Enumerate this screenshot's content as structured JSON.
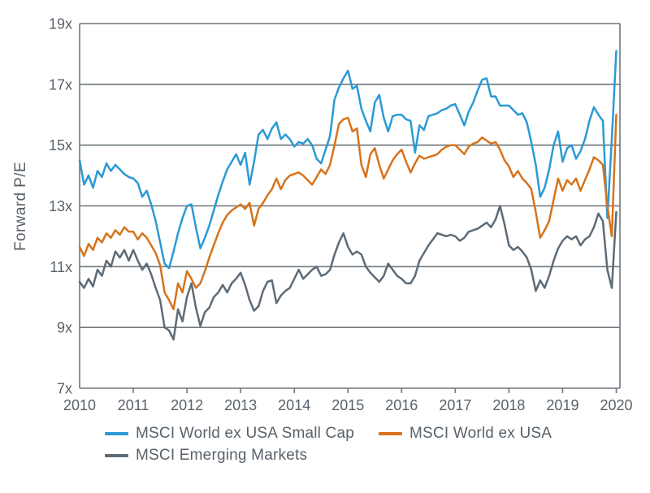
{
  "page": {
    "background": "#ffffff"
  },
  "chart_data": {
    "type": "line",
    "title": "",
    "ylabel": "Forward P/E",
    "xlabel": "",
    "ylim": [
      7,
      19
    ],
    "y_ticks": [
      "19x",
      "17x",
      "15x",
      "13x",
      "11x",
      "9x",
      "7x"
    ],
    "y_tick_values": [
      19,
      17,
      15,
      13,
      11,
      9,
      7
    ],
    "x_ticks": [
      "2010",
      "2011",
      "2012",
      "2013",
      "2014",
      "2015",
      "2016",
      "2017",
      "2018",
      "2019",
      "2020"
    ],
    "x_tick_values": [
      2010,
      2011,
      2012,
      2013,
      2014,
      2015,
      2016,
      2017,
      2018,
      2019,
      2020
    ],
    "x_start_year": 2010,
    "points_per_year": 12,
    "grid": "horizontal",
    "legend_position": "bottom-left",
    "axis_color": "#6E777E",
    "text_color": "#58616A",
    "series": [
      {
        "name": "MSCI World ex USA Small Cap",
        "color": "#2A9AD6",
        "values": [
          14.5,
          13.7,
          14.0,
          13.6,
          14.15,
          13.95,
          14.4,
          14.15,
          14.35,
          14.2,
          14.05,
          13.95,
          13.9,
          13.75,
          13.3,
          13.5,
          13.05,
          12.5,
          11.8,
          11.1,
          10.95,
          11.5,
          12.1,
          12.6,
          13.0,
          13.05,
          12.3,
          11.6,
          11.95,
          12.35,
          12.85,
          13.35,
          13.8,
          14.2,
          14.45,
          14.7,
          14.35,
          14.75,
          13.7,
          14.45,
          15.35,
          15.5,
          15.2,
          15.55,
          15.75,
          15.2,
          15.35,
          15.2,
          14.95,
          15.1,
          15.05,
          15.2,
          15.0,
          14.55,
          14.4,
          14.85,
          15.3,
          16.5,
          16.9,
          17.2,
          17.45,
          16.85,
          16.95,
          16.2,
          15.8,
          15.45,
          16.4,
          16.65,
          15.9,
          15.45,
          15.95,
          16.0,
          16.0,
          15.85,
          15.8,
          14.75,
          15.65,
          15.5,
          15.95,
          16.0,
          16.05,
          16.15,
          16.2,
          16.3,
          16.35,
          16.0,
          15.65,
          16.1,
          16.4,
          16.8,
          17.15,
          17.2,
          16.6,
          16.6,
          16.3,
          16.3,
          16.3,
          16.15,
          16.0,
          16.05,
          15.75,
          15.1,
          14.35,
          13.3,
          13.6,
          14.2,
          15.0,
          15.45,
          14.45,
          14.9,
          15.0,
          14.55,
          14.8,
          15.2,
          15.8,
          16.25,
          16.0,
          15.8,
          12.6,
          15.2,
          18.1
        ]
      },
      {
        "name": "MSCI World ex USA",
        "color": "#D7731B",
        "values": [
          11.65,
          11.35,
          11.75,
          11.55,
          11.95,
          11.8,
          12.1,
          11.95,
          12.2,
          12.05,
          12.3,
          12.15,
          12.15,
          11.9,
          12.1,
          11.95,
          11.7,
          11.45,
          11.05,
          10.15,
          9.9,
          9.6,
          10.45,
          10.15,
          10.85,
          10.6,
          10.3,
          10.45,
          10.85,
          11.3,
          11.7,
          12.1,
          12.45,
          12.7,
          12.85,
          12.95,
          13.05,
          12.9,
          13.1,
          12.35,
          12.9,
          13.1,
          13.35,
          13.55,
          13.9,
          13.55,
          13.85,
          14.0,
          14.05,
          14.1,
          14.0,
          13.85,
          13.7,
          13.95,
          14.2,
          14.05,
          14.35,
          15.0,
          15.7,
          15.85,
          15.9,
          15.45,
          15.55,
          14.35,
          13.95,
          14.7,
          14.9,
          14.35,
          13.9,
          14.2,
          14.5,
          14.7,
          14.85,
          14.45,
          14.1,
          14.4,
          14.65,
          14.55,
          14.6,
          14.65,
          14.7,
          14.85,
          14.95,
          15.0,
          15.0,
          14.85,
          14.7,
          14.95,
          15.05,
          15.1,
          15.25,
          15.15,
          15.05,
          15.1,
          14.85,
          14.5,
          14.3,
          13.95,
          14.15,
          13.9,
          13.75,
          13.55,
          12.8,
          11.95,
          12.2,
          12.5,
          13.2,
          13.9,
          13.5,
          13.85,
          13.7,
          13.9,
          13.5,
          13.85,
          14.2,
          14.6,
          14.5,
          14.35,
          13.0,
          12.0,
          16.0
        ]
      },
      {
        "name": "MSCI Emerging Markets",
        "color": "#5D6B77",
        "values": [
          10.5,
          10.3,
          10.6,
          10.35,
          10.9,
          10.7,
          11.2,
          11.0,
          11.5,
          11.3,
          11.55,
          11.2,
          11.55,
          11.2,
          10.9,
          11.1,
          10.75,
          10.3,
          9.9,
          9.0,
          8.9,
          8.6,
          9.6,
          9.2,
          10.0,
          10.45,
          9.65,
          9.05,
          9.5,
          9.65,
          10.0,
          10.15,
          10.4,
          10.15,
          10.45,
          10.6,
          10.8,
          10.4,
          9.9,
          9.55,
          9.7,
          10.2,
          10.5,
          10.55,
          9.8,
          10.05,
          10.2,
          10.3,
          10.6,
          10.9,
          10.6,
          10.75,
          10.9,
          11.0,
          10.7,
          10.75,
          10.9,
          11.4,
          11.8,
          12.1,
          11.65,
          11.4,
          11.5,
          11.4,
          11.0,
          10.8,
          10.65,
          10.5,
          10.7,
          11.1,
          10.9,
          10.7,
          10.6,
          10.45,
          10.45,
          10.7,
          11.2,
          11.45,
          11.7,
          11.9,
          12.1,
          12.05,
          12.0,
          12.05,
          12.0,
          11.85,
          11.95,
          12.15,
          12.2,
          12.25,
          12.35,
          12.45,
          12.3,
          12.55,
          13.0,
          12.4,
          11.7,
          11.55,
          11.65,
          11.5,
          11.3,
          10.9,
          10.2,
          10.55,
          10.3,
          10.7,
          11.2,
          11.6,
          11.85,
          12.0,
          11.9,
          12.0,
          11.7,
          11.9,
          12.0,
          12.3,
          12.75,
          12.5,
          10.9,
          10.3,
          12.8
        ]
      }
    ]
  },
  "legend": {
    "items": [
      {
        "label": "MSCI World ex USA Small Cap"
      },
      {
        "label": "MSCI World ex USA"
      },
      {
        "label": "MSCI Emerging Markets"
      }
    ]
  }
}
